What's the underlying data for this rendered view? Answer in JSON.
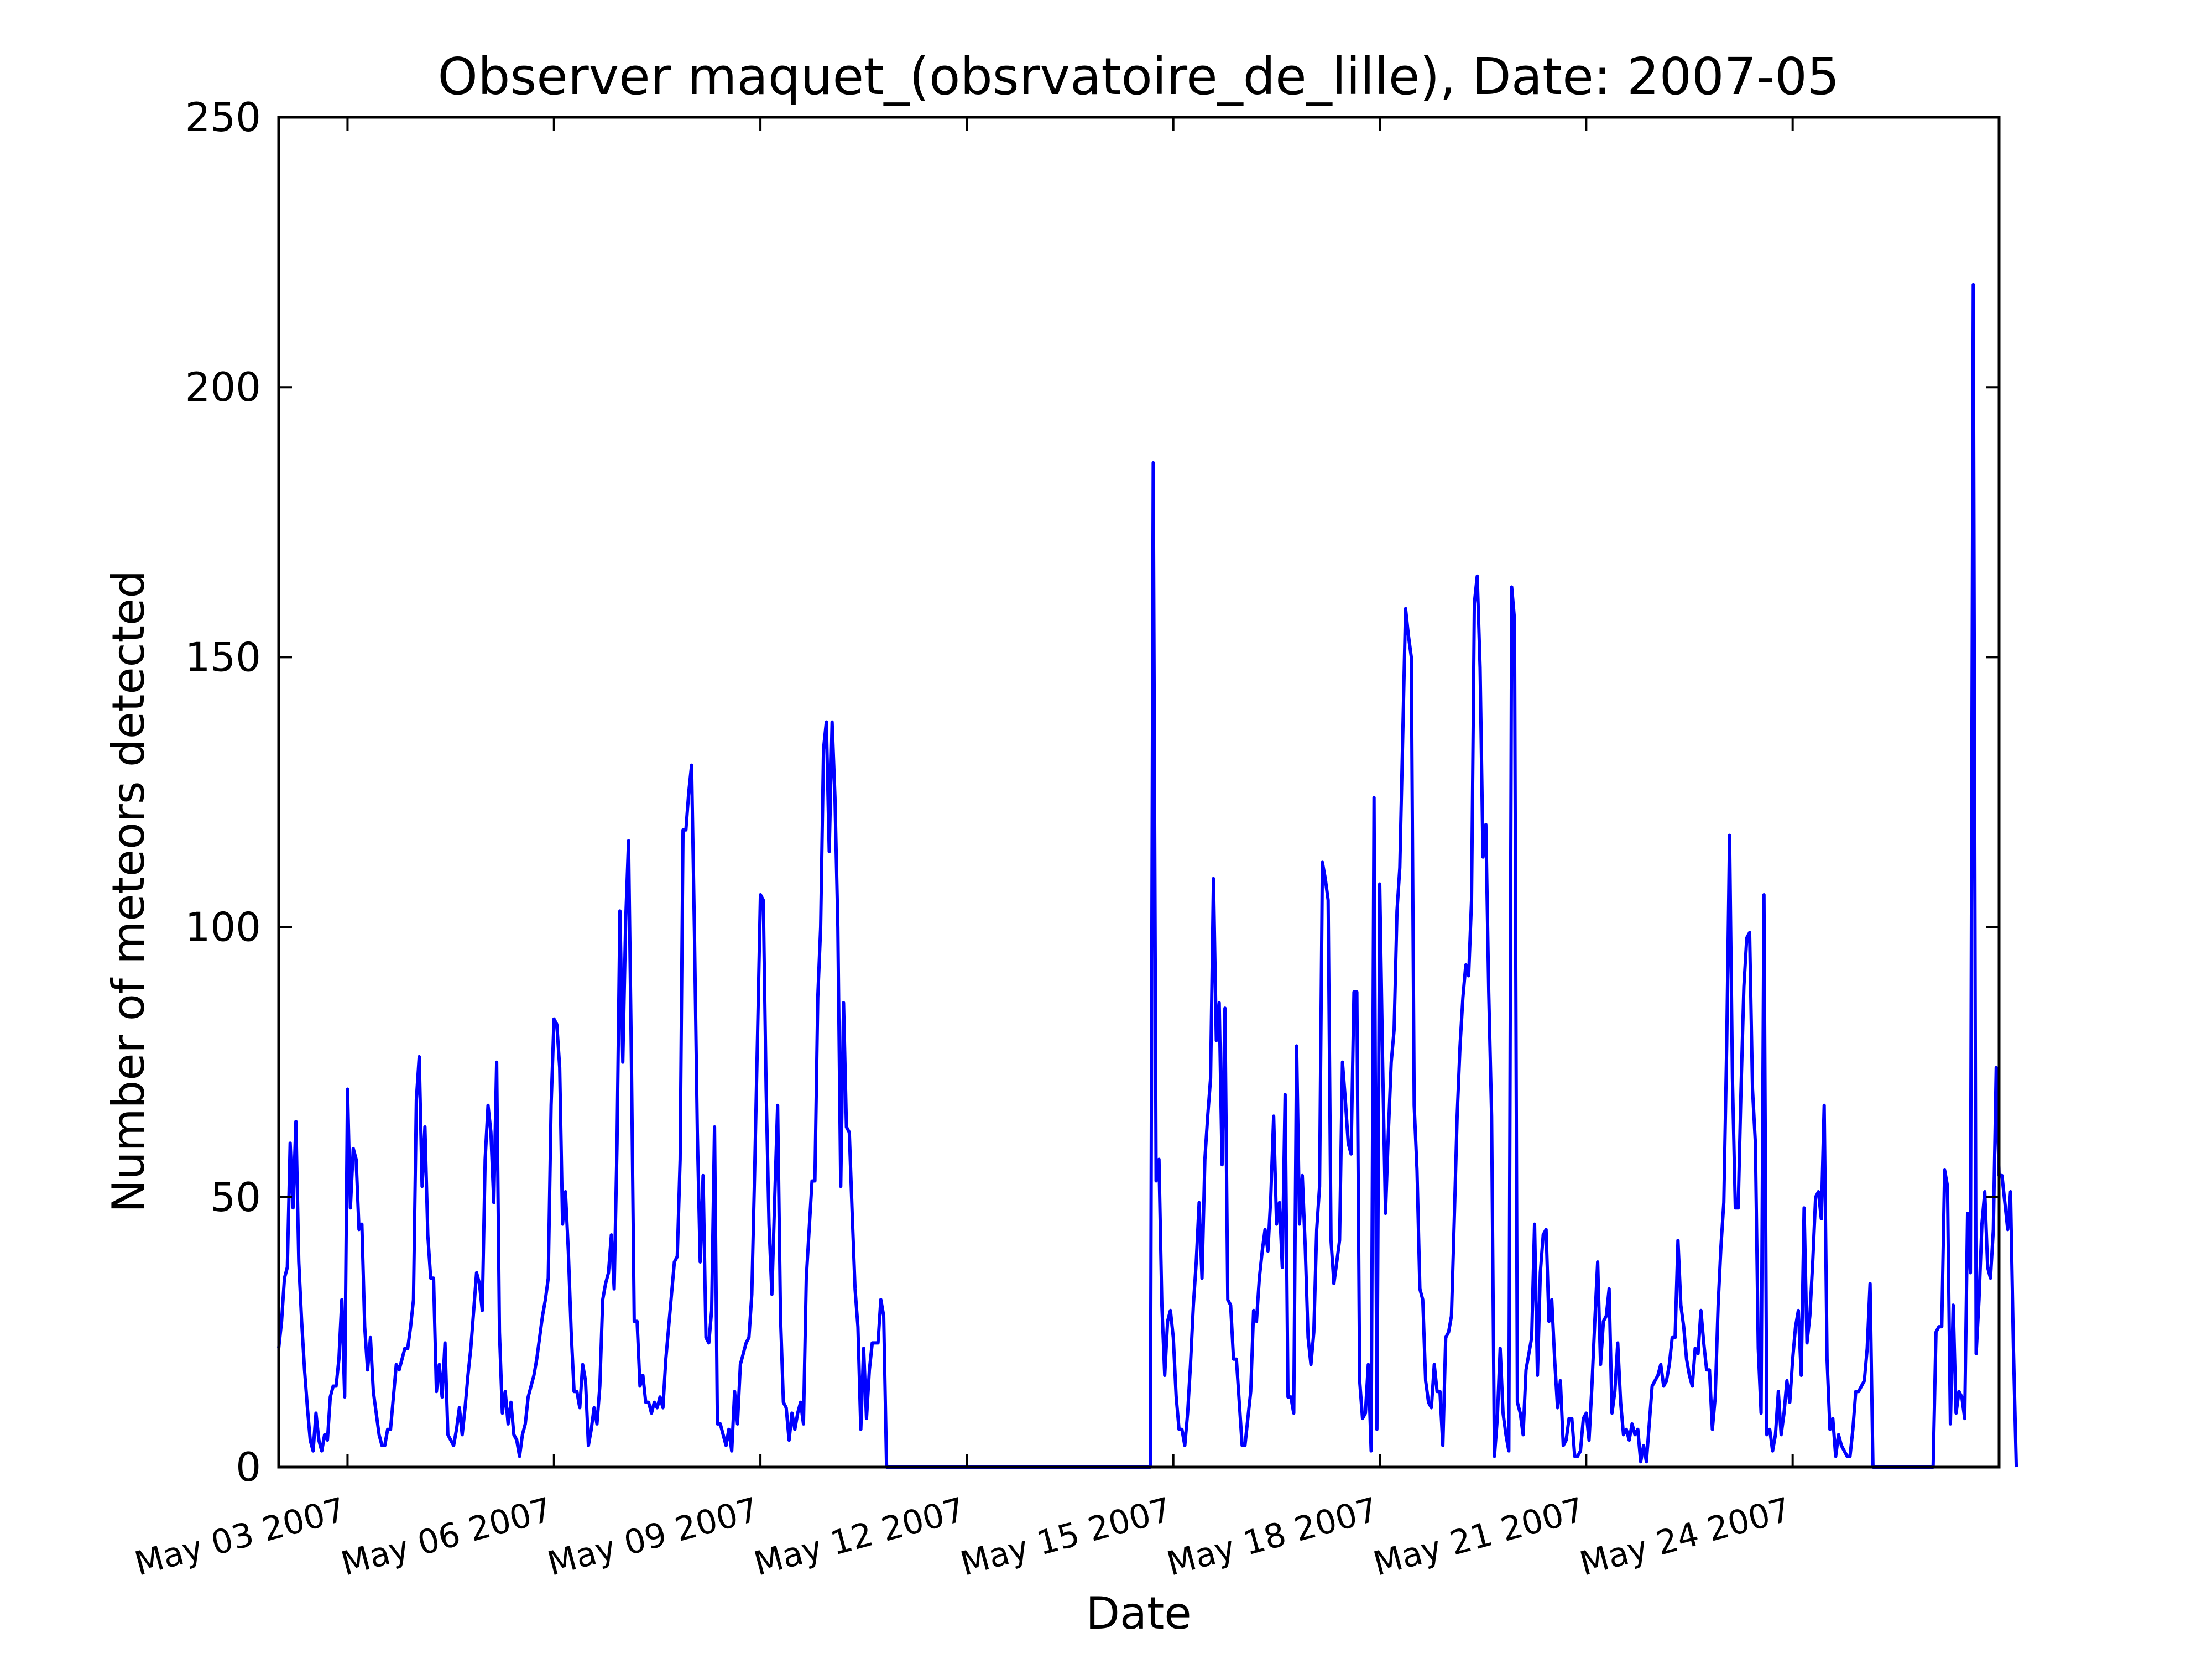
{
  "chart_data": {
    "type": "line",
    "title": "Observer maquet_(obsrvatoire_de_lille), Date: 2007-05",
    "xlabel": "Date",
    "ylabel": "Number of meteors detected",
    "ylim": [
      0,
      250
    ],
    "xlim": [
      "2007-05-02T00:00",
      "2007-05-27T00:00"
    ],
    "grid": false,
    "legend": "none",
    "series_color": "#0000ff",
    "y_ticks": [
      "0",
      "50",
      "100",
      "150",
      "200",
      "250"
    ],
    "x_ticks": [
      {
        "date": "2007-05-03",
        "label": "May 03 2007"
      },
      {
        "date": "2007-05-06",
        "label": "May 06 2007"
      },
      {
        "date": "2007-05-09",
        "label": "May 09 2007"
      },
      {
        "date": "2007-05-12",
        "label": "May 12 2007"
      },
      {
        "date": "2007-05-15",
        "label": "May 15 2007"
      },
      {
        "date": "2007-05-18",
        "label": "May 18 2007"
      },
      {
        "date": "2007-05-21",
        "label": "May 21 2007"
      },
      {
        "date": "2007-05-24",
        "label": "May 24 2007"
      }
    ],
    "series": [
      {
        "x_start": "2007-05-02T00:00",
        "step_hours": 1,
        "values": [
          22,
          27,
          35,
          37,
          60,
          48,
          64,
          38,
          27,
          18,
          11,
          5,
          3,
          10,
          5,
          3,
          6,
          5,
          13,
          15,
          15,
          20,
          31,
          13,
          70,
          48,
          59,
          57,
          44,
          45,
          26,
          18,
          24,
          14,
          10,
          6,
          4,
          4,
          7,
          7,
          13,
          19,
          18,
          20,
          22,
          22,
          26,
          31,
          68,
          76,
          52,
          63,
          43,
          35,
          35,
          14,
          19,
          13,
          23,
          6,
          5,
          4,
          7,
          11,
          6,
          11,
          17,
          22,
          29,
          36,
          34,
          29,
          57,
          67,
          62,
          49,
          75,
          25,
          10,
          14,
          8,
          12,
          6,
          5,
          2,
          6,
          8,
          13,
          15,
          17,
          20,
          24,
          28,
          31,
          35,
          67,
          83,
          82,
          74,
          45,
          51,
          40,
          25,
          14,
          14,
          11,
          19,
          16,
          4,
          7,
          11,
          8,
          15,
          31,
          34,
          36,
          43,
          33,
          60,
          103,
          75,
          101,
          116,
          75,
          27,
          27,
          15,
          17,
          12,
          12,
          10,
          12,
          11,
          13,
          11,
          20,
          26,
          32,
          38,
          39,
          57,
          118,
          118,
          125,
          130,
          99,
          62,
          38,
          54,
          24,
          23,
          29,
          63,
          8,
          8,
          6,
          4,
          7,
          3,
          14,
          8,
          19,
          21,
          23,
          24,
          32,
          55,
          80,
          106,
          105,
          70,
          45,
          32,
          50,
          67,
          28,
          12,
          11,
          5,
          10,
          7,
          10,
          12,
          8,
          35,
          44,
          53,
          53,
          87,
          100,
          133,
          138,
          114,
          138,
          124,
          100,
          52,
          86,
          63,
          62,
          47,
          33,
          26,
          7,
          22,
          9,
          18,
          23,
          23,
          23,
          31,
          28,
          0,
          0,
          0,
          0,
          0,
          0,
          0,
          0,
          0,
          0,
          0,
          0,
          0,
          0,
          0,
          0,
          0,
          0,
          0,
          0,
          0,
          0,
          0,
          0,
          0,
          0,
          0,
          0,
          0,
          0,
          0,
          0,
          0,
          0,
          0,
          0,
          0,
          0,
          0,
          0,
          0,
          0,
          0,
          0,
          0,
          0,
          0,
          0,
          0,
          0,
          0,
          0,
          0,
          0,
          0,
          0,
          0,
          0,
          0,
          0,
          0,
          0,
          0,
          0,
          0,
          0,
          0,
          0,
          0,
          0,
          0,
          0,
          0,
          0,
          0,
          0,
          0,
          0,
          0,
          0,
          0,
          0,
          0,
          0,
          0,
          0,
          0,
          0,
          0,
          0,
          0,
          0,
          0,
          186,
          53,
          57,
          30,
          17,
          27,
          29,
          24,
          13,
          7,
          7,
          4,
          10,
          19,
          30,
          38,
          49,
          35,
          57,
          65,
          72,
          109,
          79,
          86,
          56,
          85,
          31,
          30,
          20,
          20,
          12,
          4,
          4,
          9,
          14,
          29,
          27,
          35,
          40,
          44,
          40,
          50,
          65,
          45,
          49,
          37,
          69,
          13,
          13,
          10,
          78,
          45,
          54,
          41,
          24,
          19,
          25,
          44,
          52,
          112,
          109,
          105,
          42,
          34,
          38,
          42,
          75,
          68,
          60,
          58,
          88,
          88,
          16,
          9,
          10,
          19,
          3,
          124,
          7,
          108,
          75,
          47,
          62,
          75,
          81,
          103,
          111,
          135,
          159,
          154,
          150,
          67,
          55,
          33,
          31,
          16,
          12,
          11,
          19,
          14,
          14,
          4,
          24,
          25,
          28,
          46,
          65,
          78,
          87,
          93,
          91,
          105,
          160,
          165,
          148,
          113,
          119,
          88,
          65,
          2,
          9,
          22,
          10,
          6,
          3,
          163,
          157,
          12,
          10,
          6,
          18,
          21,
          24,
          45,
          17,
          36,
          43,
          44,
          27,
          31,
          20,
          11,
          16,
          4,
          5,
          9,
          9,
          2,
          2,
          3,
          9,
          10,
          5,
          15,
          27,
          38,
          19,
          27,
          28,
          33,
          10,
          14,
          23,
          12,
          6,
          7,
          5,
          8,
          6,
          7,
          1,
          4,
          1,
          8,
          15,
          16,
          17,
          19,
          15,
          16,
          19,
          24,
          24,
          42,
          30,
          26,
          20,
          17,
          15,
          22,
          21,
          29,
          23,
          18,
          18,
          7,
          13,
          30,
          41,
          49,
          78,
          117,
          72,
          48,
          48,
          70,
          89,
          98,
          99,
          70,
          60,
          22,
          10,
          106,
          6,
          7,
          3,
          6,
          14,
          6,
          10,
          16,
          12,
          20,
          26,
          29,
          17,
          48,
          23,
          28,
          38,
          50,
          51,
          46,
          67,
          20,
          7,
          9,
          2,
          6,
          4,
          3,
          2,
          2,
          7,
          14,
          14,
          15,
          16,
          22,
          34,
          0,
          0,
          0,
          0,
          0,
          0,
          0,
          0,
          0,
          0,
          0,
          0,
          0,
          0,
          0,
          0,
          0,
          0,
          0,
          0,
          0,
          0,
          25,
          26,
          26,
          55,
          52,
          8,
          30,
          10,
          14,
          13,
          9,
          47,
          36,
          219,
          21,
          31,
          45,
          51,
          37,
          35,
          44,
          74,
          54,
          54,
          49,
          44,
          51,
          22,
          0
        ]
      }
    ]
  }
}
